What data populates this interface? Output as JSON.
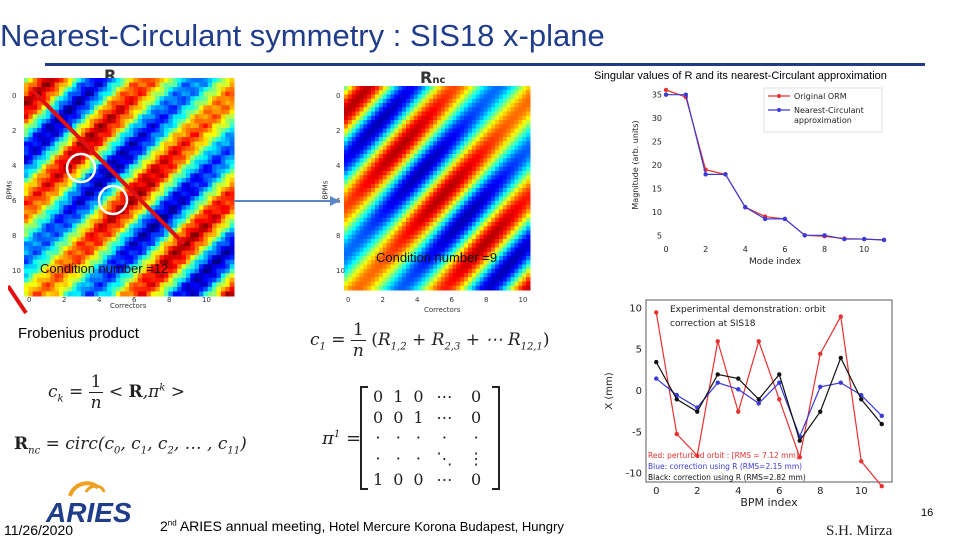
{
  "slide": {
    "title": "Nearest-Circulant symmetry : SIS18 x-plane",
    "label_R": "R",
    "label_Rnc_main": "R",
    "label_Rnc_sub": "nc",
    "cond_left": "Condition number =12",
    "cond_right": "Condition number =9",
    "frobenius": "Frobenius product",
    "sv_caption": "Singular values of R and its nearest-Circulant approximation",
    "date": "11/26/2020",
    "meeting_sup": "nd",
    "meeting_pre": "2",
    "meeting_main": " ARIES annual meeting,",
    "meeting_rest": " Hotel Mercure Korona Budapest, Hungry",
    "author": "S.H. Mirza",
    "page": "16",
    "logo_text": "ARIES"
  },
  "heatmaps": {
    "left": {
      "ylabel": "BPMs",
      "xlabel": "Correctors",
      "yticks": [
        "0",
        "2",
        "4",
        "6",
        "8",
        "10"
      ],
      "xticks": [
        "0",
        "2",
        "4",
        "6",
        "8",
        "10"
      ]
    },
    "right": {
      "ylabel": "BPMs",
      "xlabel": "Correctors",
      "yticks": [
        "0",
        "2",
        "4",
        "6",
        "8",
        "10"
      ],
      "xticks": [
        "0",
        "2",
        "4",
        "6",
        "8",
        "10"
      ]
    }
  },
  "equations": {
    "c1_lhs": "c",
    "c1_sub": "1",
    "frac_num": "1",
    "frac_den": "n",
    "c1_rhs": "(R",
    "ck_lhs": "c",
    "ck_sub": "k",
    "ck_rhs": "< R,π",
    "ck_sup": "k",
    "ck_end": ">",
    "rnc_lhs": "R",
    "rnc_sub": "nc",
    "rnc_rhs": "= circ(c",
    "pi_lhs": "π",
    "pi_sup": "1",
    "matrix_rows": [
      [
        "0",
        "1",
        "0",
        "⋯",
        "0"
      ],
      [
        "0",
        "0",
        "1",
        "⋯",
        "0"
      ],
      [
        "·",
        "·",
        "·",
        "·",
        "·"
      ],
      [
        "·",
        "·",
        "·",
        "⋱",
        "⋮"
      ],
      [
        "1",
        "0",
        "0",
        "⋯",
        "0"
      ]
    ]
  },
  "chart_data": [
    {
      "type": "line",
      "xlabel": "Mode index",
      "ylabel": "Magnitude (arb. units)",
      "xlim": [
        0,
        11
      ],
      "ylim": [
        4,
        36
      ],
      "xticks": [
        0,
        2,
        4,
        6,
        8,
        10
      ],
      "yticks": [
        5,
        10,
        15,
        20,
        25,
        30,
        35
      ],
      "legend_position": "top-right",
      "x": [
        0,
        1,
        2,
        3,
        4,
        5,
        6,
        7,
        8,
        9,
        10,
        11
      ],
      "series": [
        {
          "name": "Original ORM",
          "color": "#e8312f",
          "values": [
            36,
            34.5,
            19,
            18,
            11,
            9,
            8.5,
            5,
            4.8,
            4.3,
            4.2,
            4
          ]
        },
        {
          "name": "Nearest-Circulant approximation",
          "color": "#3a3ad8",
          "values": [
            35,
            35,
            18,
            18,
            11,
            8.5,
            8.5,
            5,
            5,
            4.2,
            4.2,
            4
          ]
        }
      ]
    },
    {
      "type": "line",
      "xlabel": "BPM index",
      "ylabel": "X (mm)",
      "xlim": [
        -0.5,
        11.5
      ],
      "ylim": [
        -11,
        11
      ],
      "xticks": [
        0,
        2,
        4,
        6,
        8,
        10
      ],
      "yticks": [
        -10,
        -5,
        0,
        5,
        10
      ],
      "annotation": "Experimental demonstration: orbit correction at SIS18",
      "legend_lines": [
        "Red: perturbed orbit : [RMS = 7.12 mm]",
        "Blue: correction using R (RMS=2.15 mm)",
        "Black: correction using R",
        "(RMS=2.82 mm)"
      ],
      "x": [
        0,
        1,
        2,
        3,
        4,
        5,
        6,
        7,
        8,
        9,
        10,
        11
      ],
      "series": [
        {
          "name": "Red",
          "color": "#e8312f",
          "values": [
            9.5,
            -5.2,
            -7.8,
            6.0,
            -2.5,
            6.0,
            -1.0,
            -8.0,
            4.5,
            9.0,
            -8.5,
            -11.5
          ]
        },
        {
          "name": "Blue",
          "color": "#3a3ad8",
          "values": [
            1.5,
            -0.5,
            -2.0,
            1.0,
            0.2,
            -1.5,
            1.0,
            -5.5,
            0.5,
            1.0,
            -0.5,
            -3.0
          ]
        },
        {
          "name": "Black",
          "color": "#111111",
          "values": [
            3.5,
            -1.0,
            -2.5,
            2.0,
            1.5,
            -1.0,
            2.0,
            -6.0,
            -2.5,
            4.0,
            -1.0,
            -4.0
          ]
        }
      ]
    }
  ]
}
